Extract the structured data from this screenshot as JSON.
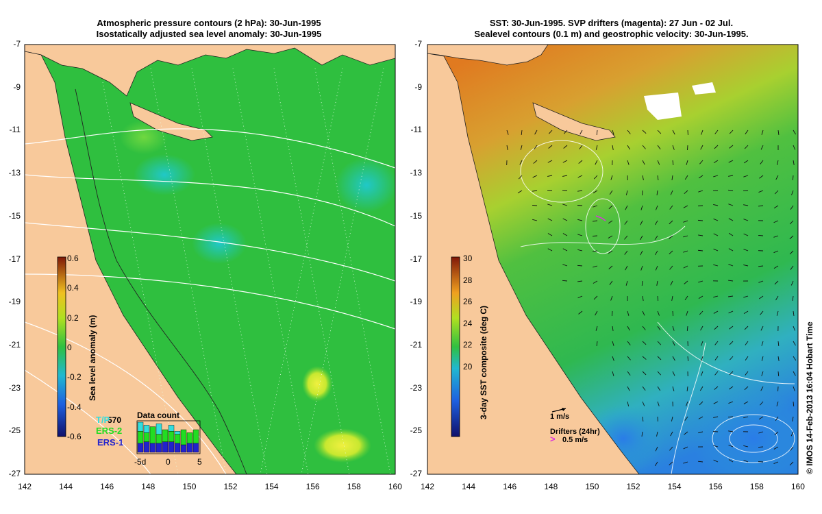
{
  "left_panel": {
    "title_line1": "Atmospheric pressure contours (2 hPa): 30-Jun-1995",
    "title_line2": "Isostatically adjusted sea level anomaly: 30-Jun-1995",
    "colorbar": {
      "label": "Sea level anomaly (m)",
      "ticks": [
        "0.6",
        "0.4",
        "0.2",
        "0",
        "-0.2",
        "-0.4",
        "-0.6"
      ]
    },
    "legend": {
      "count": "570",
      "tpx_label": "T/P",
      "ers2_label": "ERS-2",
      "ers1_label": "ERS-1",
      "tpx_color": "#33dddd",
      "ers2_color": "#22dd22",
      "ers1_color": "#2222cc"
    },
    "histogram": {
      "title": "Data count",
      "xlabels": [
        "-5d",
        "0",
        "5"
      ],
      "bars": [
        {
          "tp": 0.3,
          "ers2": 0.4,
          "ers1": 0.3
        },
        {
          "tp": 0.25,
          "ers2": 0.3,
          "ers1": 0.35
        },
        {
          "tp": 0.0,
          "ers2": 0.55,
          "ers1": 0.3
        },
        {
          "tp": 0.35,
          "ers2": 0.3,
          "ers1": 0.3
        },
        {
          "tp": 0.0,
          "ers2": 0.4,
          "ers1": 0.35
        },
        {
          "tp": 0.2,
          "ers2": 0.35,
          "ers1": 0.35
        },
        {
          "tp": 0.1,
          "ers2": 0.3,
          "ers1": 0.3
        },
        {
          "tp": 0.0,
          "ers2": 0.5,
          "ers1": 0.25
        },
        {
          "tp": 0.0,
          "ers2": 0.35,
          "ers1": 0.3
        },
        {
          "tp": 0.0,
          "ers2": 0.45,
          "ers1": 0.3
        }
      ]
    }
  },
  "right_panel": {
    "title_line1": "SST: 30-Jun-1995. SVP drifters (magenta): 27 Jun - 02 Jul.",
    "title_line2": "Sealevel contours (0.1 m) and geostrophic velocity: 30-Jun-1995.",
    "colorbar": {
      "label": "3-day SST composite (deg C)",
      "ticks": [
        "30",
        "28",
        "26",
        "24",
        "22",
        "20"
      ]
    },
    "scale_label": "1 m/s",
    "drifters_label": "Drifters (24hr)",
    "drifters_scale": "0.5 m/s",
    "drifter_color": "#dd33dd"
  },
  "axes": {
    "y_ticks": [
      "-7",
      "-9",
      "-11",
      "-13",
      "-15",
      "-17",
      "-19",
      "-21",
      "-23",
      "-25",
      "-27"
    ],
    "x_ticks": [
      "142",
      "144",
      "146",
      "148",
      "150",
      "152",
      "154",
      "156",
      "158",
      "160"
    ]
  },
  "credit": "© IMOS 14-Feb-2013 16:04 Hobart Time",
  "colors": {
    "land": "#f8c99b",
    "ocean_sla": "#2fbf3f",
    "sst_warm": "#e07a20",
    "sst_cool": "#1a6be0"
  }
}
